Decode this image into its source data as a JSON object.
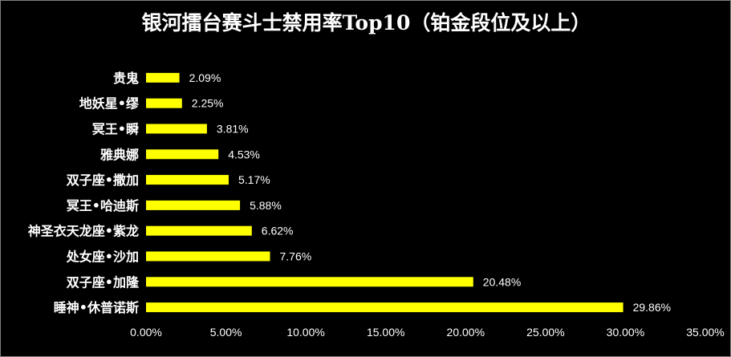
{
  "colors": {
    "background": "#000000",
    "bar": "#ffff00",
    "text": "#ffffff"
  },
  "chart_data": {
    "type": "bar",
    "orientation": "horizontal",
    "title": "银河擂台赛斗士禁用率Top10（铂金段位及以上）",
    "xlabel": "",
    "ylabel": "",
    "categories": [
      "贵鬼",
      "地妖星•缪",
      "冥王•瞬",
      "雅典娜",
      "双子座•撒加",
      "冥王•哈迪斯",
      "神圣衣天龙座•紫龙",
      "处女座•沙加",
      "双子座•加隆",
      "睡神•休普诺斯"
    ],
    "values": [
      2.09,
      2.25,
      3.81,
      4.53,
      5.17,
      5.88,
      6.62,
      7.76,
      20.48,
      29.86
    ],
    "value_labels": [
      "2.09%",
      "2.25%",
      "3.81%",
      "4.53%",
      "5.17%",
      "5.88%",
      "6.62%",
      "7.76%",
      "20.48%",
      "29.86%"
    ],
    "xlim": [
      0,
      35
    ],
    "x_ticks": [
      "0.00%",
      "5.00%",
      "10.00%",
      "15.00%",
      "20.00%",
      "25.00%",
      "30.00%",
      "35.00%"
    ],
    "grid": false,
    "legend": "none"
  }
}
